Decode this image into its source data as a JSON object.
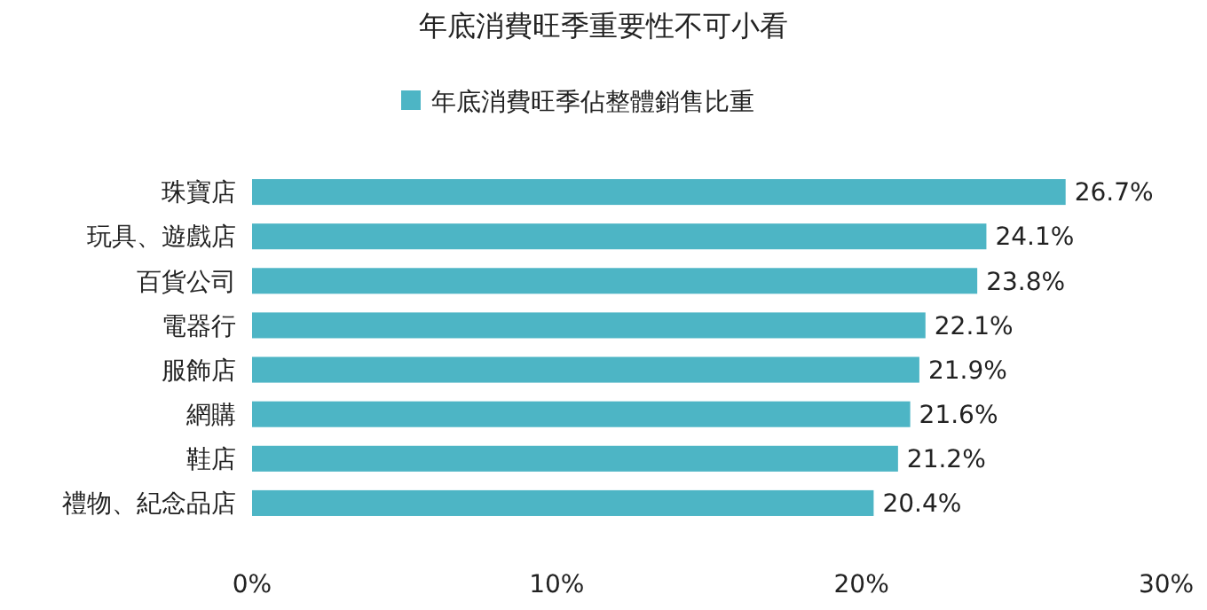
{
  "chart_data": {
    "type": "bar",
    "orientation": "horizontal",
    "title": "年底消費旺季重要性不可小看",
    "categories": [
      "珠寶店",
      "玩具、遊戲店",
      "百貨公司",
      "電器行",
      "服飾店",
      "網購",
      "鞋店",
      "禮物、紀念品店"
    ],
    "series": [
      {
        "name": "年底消費旺季佔整體銷售比重",
        "color": "#4db5c5",
        "values": [
          26.7,
          24.1,
          23.8,
          22.1,
          21.9,
          21.6,
          21.2,
          20.4
        ]
      }
    ],
    "value_labels": [
      "26.7%",
      "24.1%",
      "23.8%",
      "22.1%",
      "21.9%",
      "21.6%",
      "21.2%",
      "20.4%"
    ],
    "xlim": [
      0,
      30
    ],
    "xticks": [
      {
        "value": 0,
        "label": "0%"
      },
      {
        "value": 10,
        "label": "10%"
      },
      {
        "value": 20,
        "label": "20%"
      },
      {
        "value": 30,
        "label": "30%"
      }
    ],
    "grid": false,
    "legend": "top"
  }
}
